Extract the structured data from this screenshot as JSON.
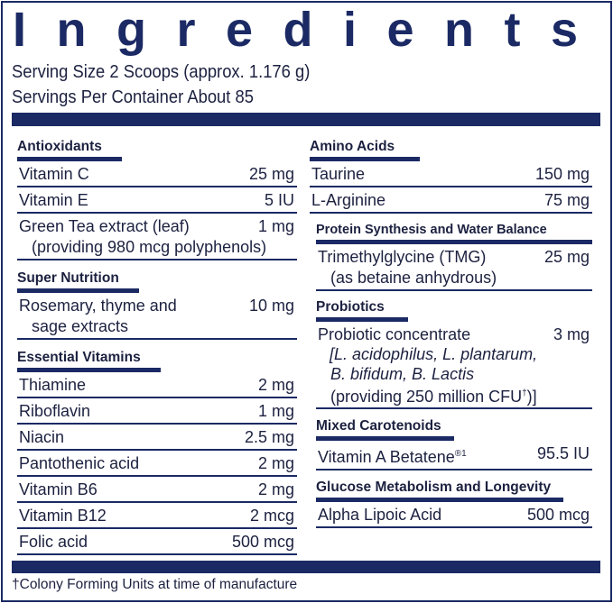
{
  "title": "Ingredients",
  "serving_size": "Serving Size 2 Scoops (approx. 1.176 g)",
  "servings_per_container": "Servings Per Container About 85",
  "colors": {
    "navy": "#1b2a64",
    "text": "#1c2140"
  },
  "left": {
    "antioxidants": {
      "header": "Antioxidants",
      "items": [
        {
          "name": "Vitamin C",
          "amount": "25 mg"
        },
        {
          "name": "Vitamin E",
          "amount": "5 IU"
        },
        {
          "name": "Green Tea extract (leaf)",
          "sub": "(providing 980 mcg polyphenols)",
          "amount": "1 mg"
        }
      ]
    },
    "super_nutrition": {
      "header": "Super Nutrition",
      "items": [
        {
          "name": "Rosemary, thyme and",
          "sub": "sage extracts",
          "amount": "10 mg"
        }
      ]
    },
    "essential_vitamins": {
      "header": "Essential Vitamins",
      "items": [
        {
          "name": "Thiamine",
          "amount": "2 mg"
        },
        {
          "name": "Riboflavin",
          "amount": "1 mg"
        },
        {
          "name": "Niacin",
          "amount": "2.5 mg"
        },
        {
          "name": "Pantothenic acid",
          "amount": "2 mg"
        },
        {
          "name": "Vitamin B6",
          "amount": "2 mg"
        },
        {
          "name": "Vitamin B12",
          "amount": "2 mcg"
        },
        {
          "name": "Folic acid",
          "amount": "500 mcg"
        }
      ]
    }
  },
  "right": {
    "amino_acids": {
      "header": "Amino Acids",
      "items": [
        {
          "name": "Taurine",
          "amount": "150 mg"
        },
        {
          "name": "L-Arginine",
          "amount": "75 mg"
        }
      ]
    },
    "protein_synthesis": {
      "header": "Protein Synthesis and Water Balance",
      "items": [
        {
          "name": "Trimethylglycine (TMG)",
          "sub": "(as betaine anhydrous)",
          "amount": "25 mg"
        }
      ]
    },
    "probiotics": {
      "header": "Probiotics",
      "items": [
        {
          "name": "Probiotic concentrate",
          "amount": "3 mg",
          "sub1": "[L. acidophilus, L. plantarum,",
          "sub2": "B. bifidum, B. Lactis",
          "sub3": "(providing 250 million CFU",
          "sub3_mark": "†",
          "sub3_end": ")]"
        }
      ]
    },
    "mixed_carotenoids": {
      "header": "Mixed Carotenoids",
      "items": [
        {
          "name": "Vitamin A Betatene",
          "mark": "®1",
          "amount": "95.5 IU"
        }
      ]
    },
    "glucose": {
      "header": "Glucose Metabolism and Longevity",
      "items": [
        {
          "name": "Alpha Lipoic Acid",
          "amount": "500 mcg"
        }
      ]
    }
  },
  "footnote": "†Colony Forming Units at time of manufacture"
}
